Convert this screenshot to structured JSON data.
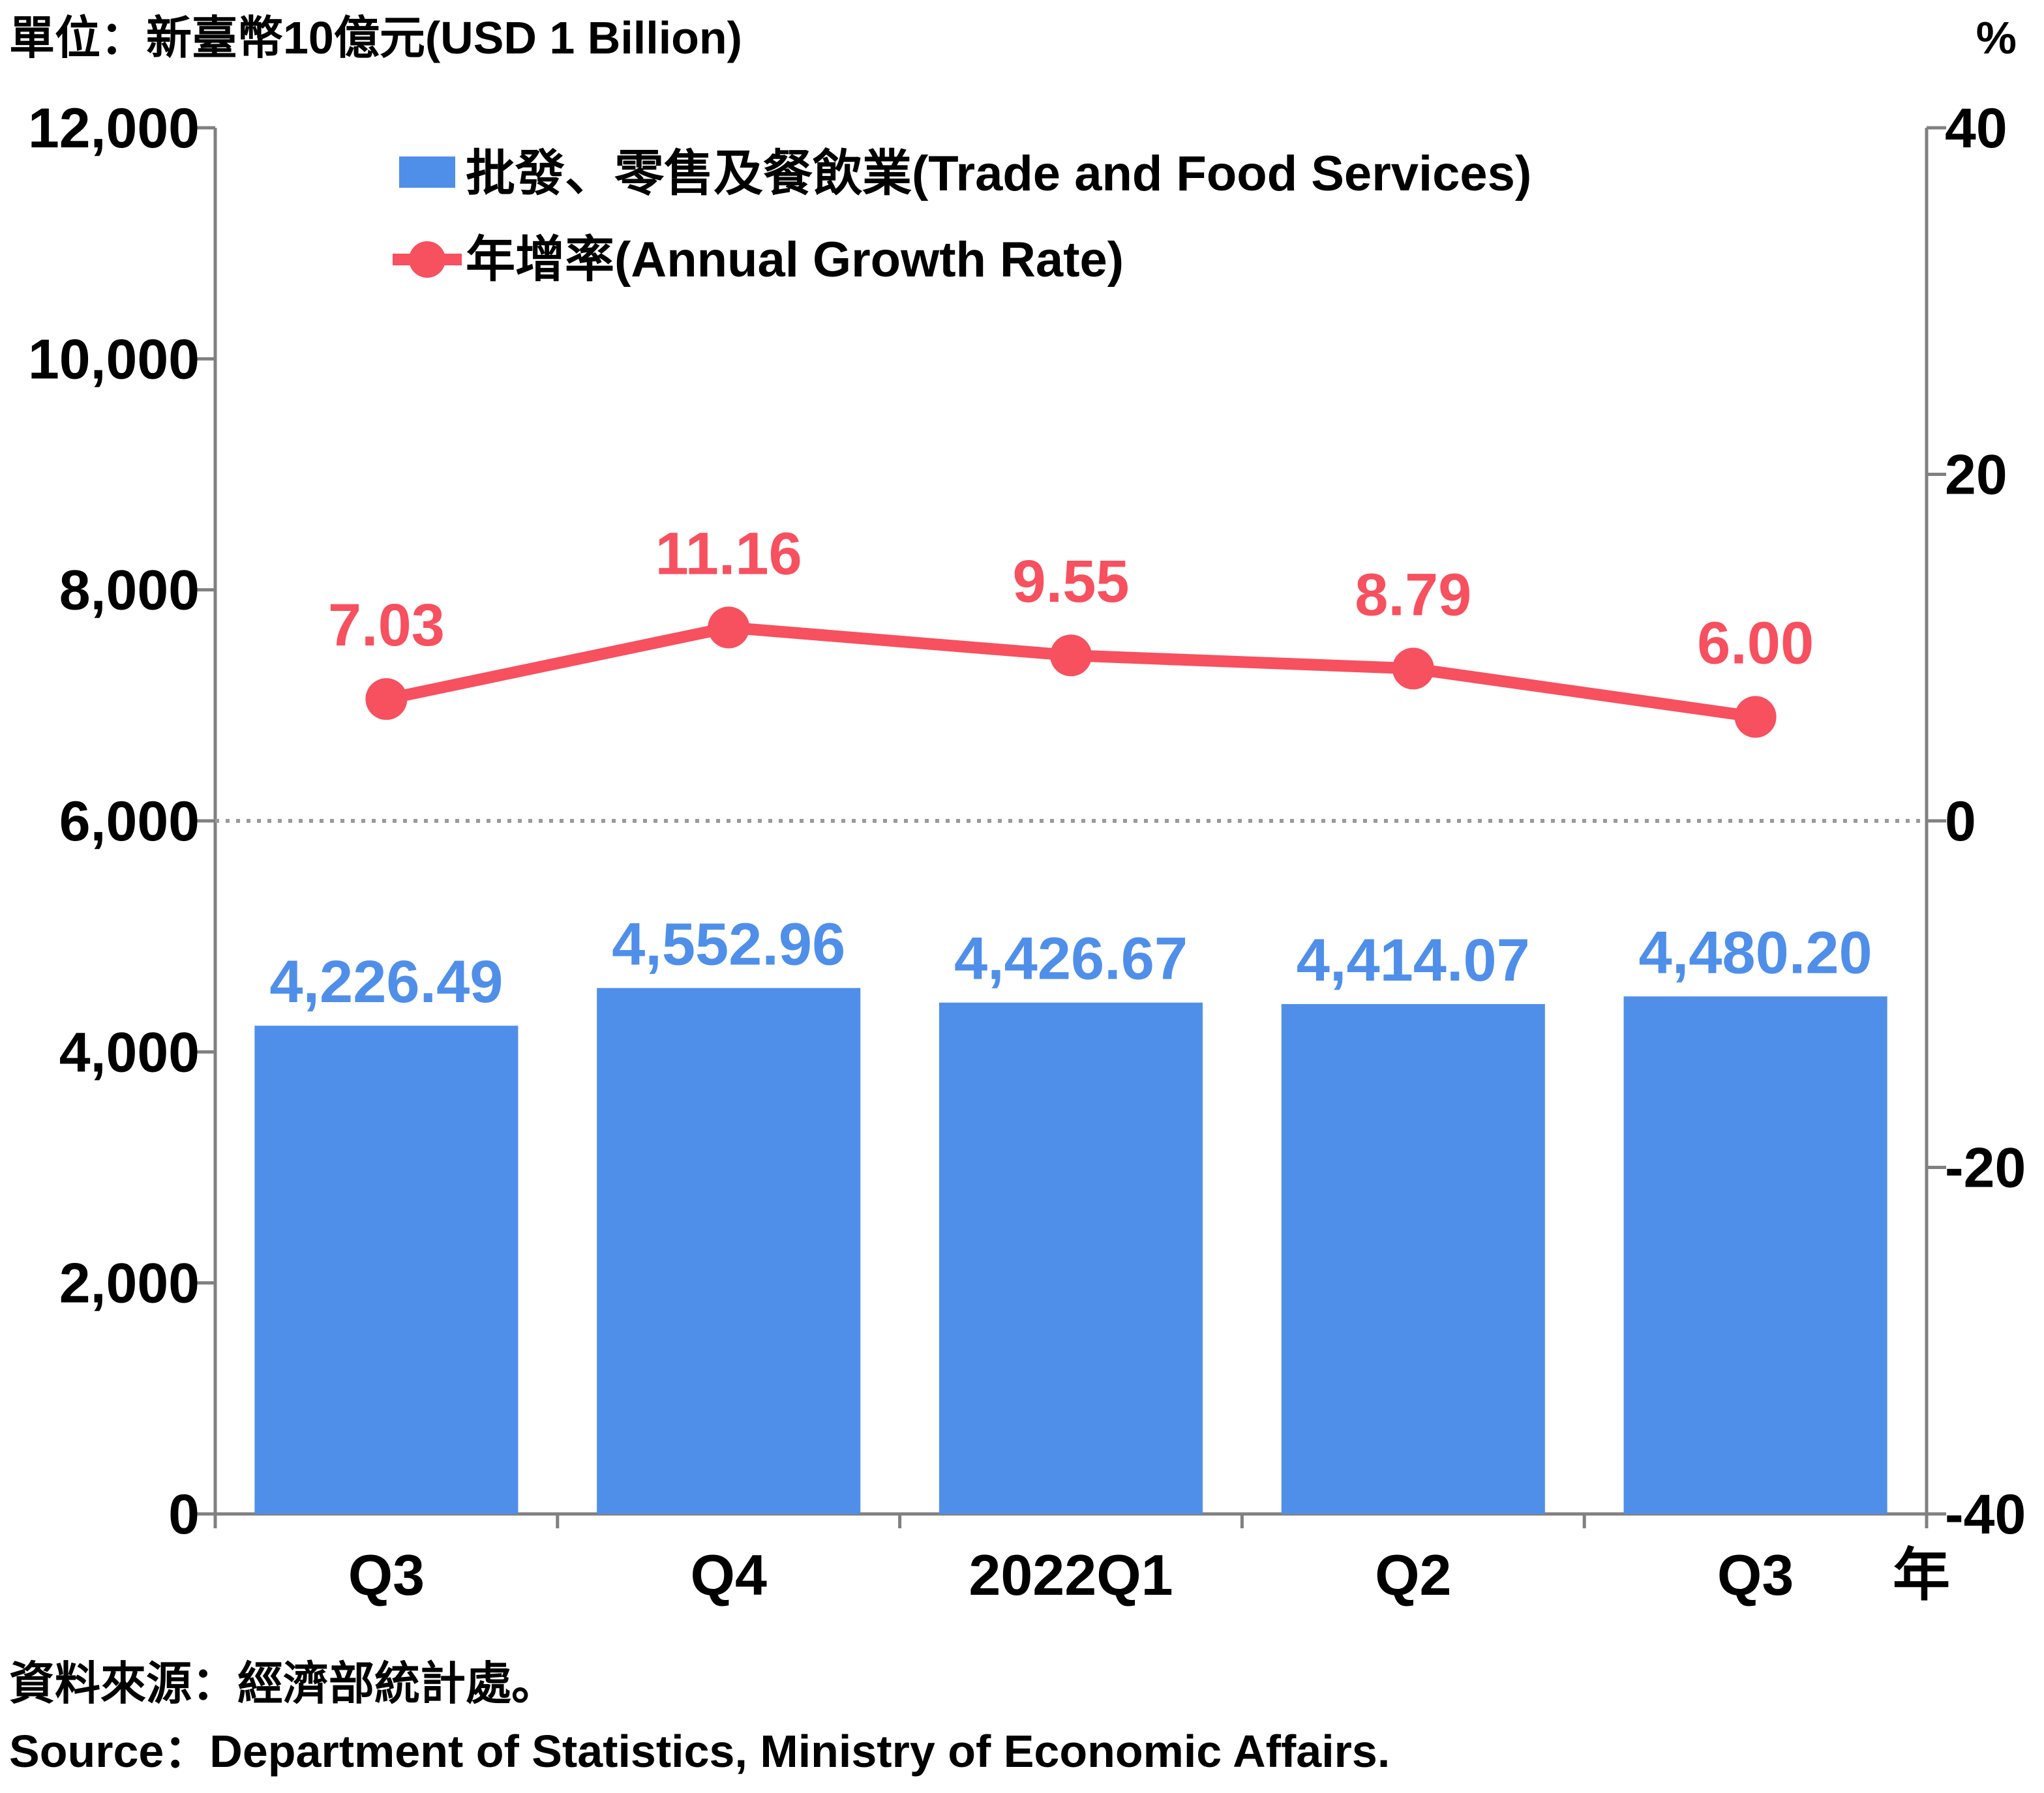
{
  "chart_data": {
    "type": "bar+line",
    "unit_label_left": "單位：新臺幣10億元(USD 1 Billion)",
    "unit_label_right": "%",
    "categories": [
      "Q3",
      "Q4",
      "2022Q1",
      "Q2",
      "Q3"
    ],
    "x_suffix": "年",
    "y_left": {
      "min": 0,
      "max": 12000,
      "ticks": [
        0,
        2000,
        4000,
        6000,
        8000,
        10000,
        12000
      ],
      "tick_labels": [
        "0",
        "2,000",
        "4,000",
        "6,000",
        "8,000",
        "10,000",
        "12,000"
      ]
    },
    "y_right": {
      "min": -40,
      "max": 40,
      "ticks": [
        -40,
        -20,
        0,
        20,
        40
      ],
      "tick_labels": [
        "-40",
        "-20",
        "0",
        "20",
        "40"
      ]
    },
    "series": [
      {
        "name": "批發、零售及餐飲業(Trade and Food Services)",
        "type": "bar",
        "axis": "left",
        "color": "#4f8fea",
        "label_color": "#4f8fea",
        "values": [
          4226.49,
          4552.96,
          4426.67,
          4414.07,
          4480.2
        ],
        "labels": [
          "4,226.49",
          "4,552.96",
          "4,426.67",
          "4,414.07",
          "4,480.20"
        ]
      },
      {
        "name": "年增率(Annual Growth Rate)",
        "type": "line",
        "axis": "right",
        "color": "#f7505f",
        "label_color": "#f7505f",
        "values": [
          7.03,
          11.16,
          9.55,
          8.79,
          6.0
        ],
        "labels": [
          "7.03",
          "11.16",
          "9.55",
          "8.79",
          "6.00"
        ]
      }
    ],
    "zero_line": "dotted",
    "legend_position": "top-left"
  },
  "source": {
    "zh": "資料來源：經濟部統計處。",
    "en": "Source：Department of Statistics, Ministry of Economic Affairs."
  }
}
